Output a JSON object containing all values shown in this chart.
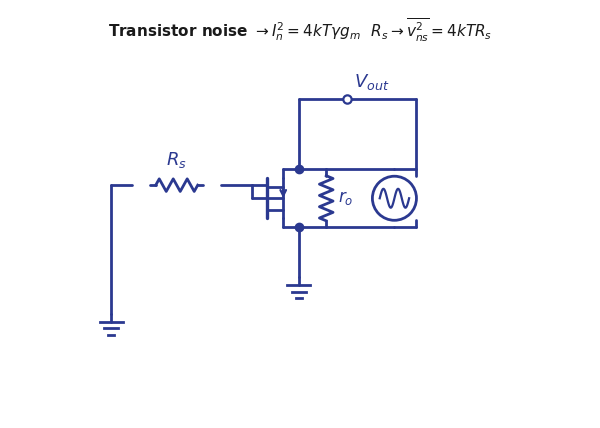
{
  "title_text": "Transistor noise $\\rightarrow I_n^2 = 4kT\\gamma g_m$  $R_s \\rightarrow \\overline{v_{ns}^2} = 4kTR_s$",
  "circuit_color": "#2B3990",
  "bg_color": "#ffffff",
  "lw": 2.0,
  "figsize": [
    6.0,
    4.28
  ],
  "dpi": 100
}
